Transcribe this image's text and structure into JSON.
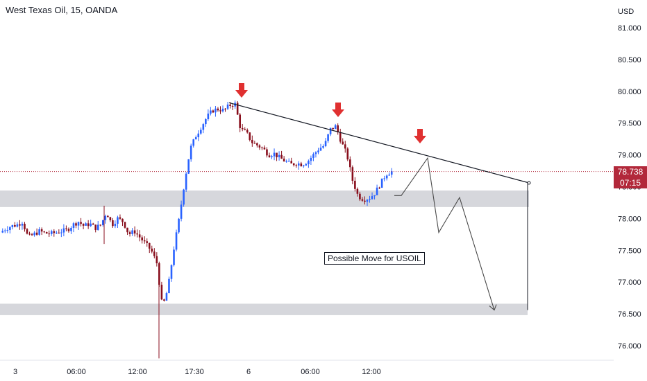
{
  "header": {
    "symbol_title": "West Texas Oil, 15, OANDA"
  },
  "axis": {
    "currency": "USD"
  },
  "annotation": {
    "text": "Possible Move for USOIL"
  },
  "last_price": {
    "value": "78.738",
    "countdown": "07:15"
  },
  "colors": {
    "up": "#2962ff",
    "down": "#880e1c",
    "arrow": "#e03030",
    "zone": "#d6d7dc",
    "trendline": "#131722",
    "price_line": "#b2283a"
  },
  "chart_data": {
    "type": "candlestick",
    "title": "West Texas Oil, 15, OANDA",
    "ylabel": "USD",
    "ylim": [
      75.8,
      81.3
    ],
    "y_ticks": [
      "76.000",
      "76.500",
      "77.000",
      "77.500",
      "78.000",
      "78.500",
      "79.000",
      "79.500",
      "80.000",
      "80.500",
      "81.000"
    ],
    "x_ticks": [
      "3",
      "06:00",
      "12:00",
      "17:30",
      "6",
      "06:00",
      "12:00"
    ],
    "last_price": 78.738,
    "series": [
      {
        "role": "price",
        "description": "Approximate closing path read from candles",
        "values": [
          77.78,
          77.84,
          77.88,
          77.9,
          77.95,
          77.7,
          77.75,
          77.8,
          77.77,
          77.76,
          77.78,
          77.8,
          77.82,
          77.9,
          77.95,
          77.88,
          77.92,
          77.85,
          77.9,
          78.1,
          77.9,
          78.0,
          77.95,
          77.75,
          77.8,
          77.7,
          77.6,
          77.5,
          77.3,
          76.6,
          76.9,
          77.5,
          78.0,
          78.6,
          79.1,
          79.3,
          79.45,
          79.6,
          79.7,
          79.72,
          79.7,
          79.78,
          79.8,
          79.4,
          79.35,
          79.2,
          79.15,
          79.1,
          79.0,
          79.02,
          78.95,
          78.9,
          78.85,
          78.87,
          78.85,
          78.9,
          79.0,
          79.1,
          79.15,
          79.4,
          79.45,
          79.2,
          79.0,
          78.6,
          78.35,
          78.3,
          78.32,
          78.4,
          78.55,
          78.7,
          78.738
        ]
      }
    ],
    "zones": [
      {
        "from": 78.18,
        "to": 78.44
      },
      {
        "from": 76.48,
        "to": 76.66
      }
    ],
    "trendline": {
      "from_price": 79.82,
      "to_price": 78.56
    },
    "projected_path": [
      78.36,
      78.36,
      78.95,
      77.78,
      78.33,
      76.56
    ],
    "arrow_markers": 3
  }
}
